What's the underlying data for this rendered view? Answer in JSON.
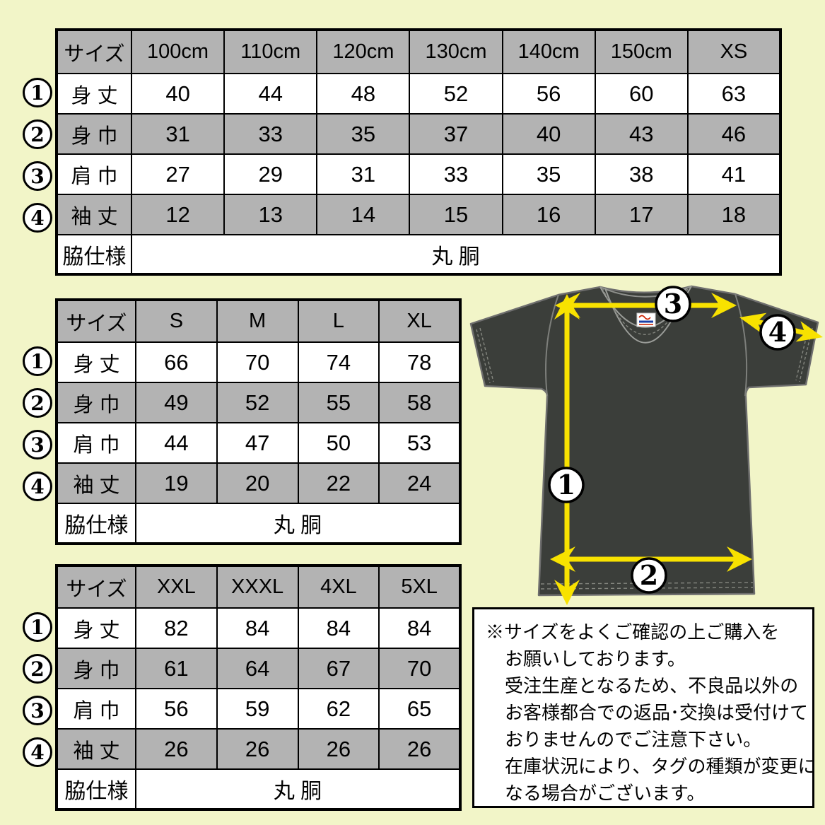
{
  "colors": {
    "background": "#f2f5c8",
    "table_shaded_cell": "#b3b3b3",
    "table_border": "#000000",
    "shirt_body": "#3b3e3a",
    "arrow_yellow": "#f8e200",
    "marker_fill": "#ffffff"
  },
  "tables": [
    {
      "header": [
        "サイズ",
        "100cm",
        "110cm",
        "120cm",
        "130cm",
        "140cm",
        "150cm",
        "XS"
      ],
      "rows": [
        {
          "marker": "1",
          "label": "身 丈",
          "values": [
            "40",
            "44",
            "48",
            "52",
            "56",
            "60",
            "63"
          ],
          "shaded": false
        },
        {
          "marker": "2",
          "label": "身 巾",
          "values": [
            "31",
            "33",
            "35",
            "37",
            "40",
            "43",
            "46"
          ],
          "shaded": true
        },
        {
          "marker": "3",
          "label": "肩 巾",
          "values": [
            "27",
            "29",
            "31",
            "33",
            "35",
            "38",
            "41"
          ],
          "shaded": false
        },
        {
          "marker": "4",
          "label": "袖 丈",
          "values": [
            "12",
            "13",
            "14",
            "15",
            "16",
            "17",
            "18"
          ],
          "shaded": true
        }
      ],
      "footer": {
        "label": "脇仕様",
        "value": "丸 胴"
      }
    },
    {
      "header": [
        "サイズ",
        "S",
        "M",
        "L",
        "XL"
      ],
      "rows": [
        {
          "marker": "1",
          "label": "身 丈",
          "values": [
            "66",
            "70",
            "74",
            "78"
          ],
          "shaded": false
        },
        {
          "marker": "2",
          "label": "身 巾",
          "values": [
            "49",
            "52",
            "55",
            "58"
          ],
          "shaded": true
        },
        {
          "marker": "3",
          "label": "肩 巾",
          "values": [
            "44",
            "47",
            "50",
            "53"
          ],
          "shaded": false
        },
        {
          "marker": "4",
          "label": "袖 丈",
          "values": [
            "19",
            "20",
            "22",
            "24"
          ],
          "shaded": true
        }
      ],
      "footer": {
        "label": "脇仕様",
        "value": "丸 胴"
      }
    },
    {
      "header": [
        "サイズ",
        "XXL",
        "XXXL",
        "4XL",
        "5XL"
      ],
      "rows": [
        {
          "marker": "1",
          "label": "身 丈",
          "values": [
            "82",
            "84",
            "84",
            "84"
          ],
          "shaded": false
        },
        {
          "marker": "2",
          "label": "身 巾",
          "values": [
            "61",
            "64",
            "67",
            "70"
          ],
          "shaded": true
        },
        {
          "marker": "3",
          "label": "肩 巾",
          "values": [
            "56",
            "59",
            "62",
            "65"
          ],
          "shaded": false
        },
        {
          "marker": "4",
          "label": "袖 丈",
          "values": [
            "26",
            "26",
            "26",
            "26"
          ],
          "shaded": true
        }
      ],
      "footer": {
        "label": "脇仕様",
        "value": "丸 胴"
      }
    }
  ],
  "diagram": {
    "markers": [
      "1",
      "2",
      "3",
      "4"
    ]
  },
  "notice": {
    "lines": [
      "※サイズをよくご確認の上ご購入を",
      "お願いしております。",
      "受注生産となるため、不良品以外の",
      "お客様都合での返品･交換は受付けて",
      "おりませんのでご注意下さい。",
      "在庫状況により、タグの種類が変更に",
      "なる場合がございます。"
    ]
  }
}
